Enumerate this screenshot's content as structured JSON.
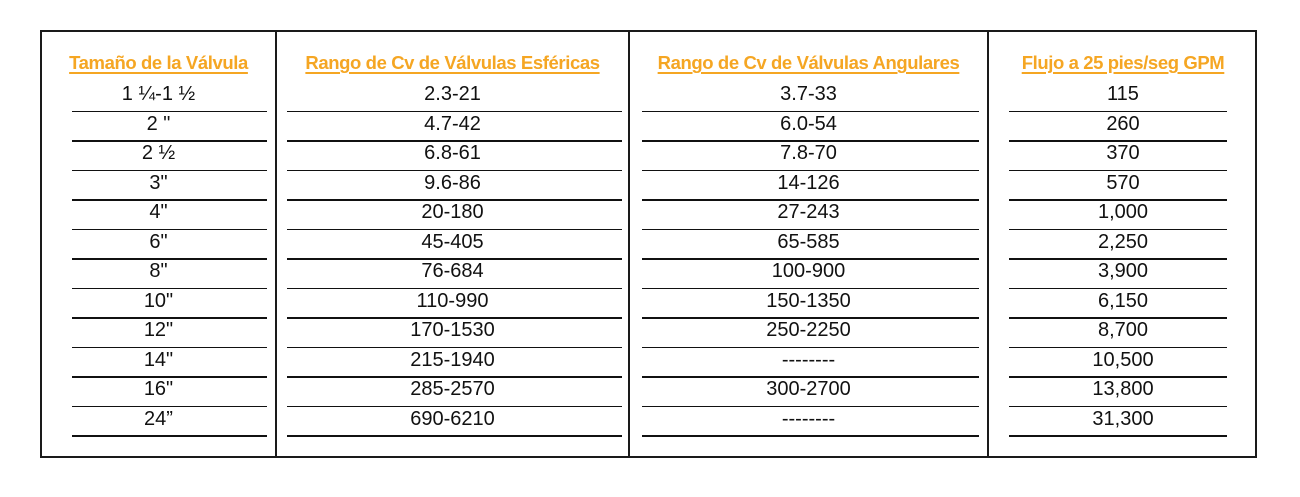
{
  "table": {
    "headers": [
      "Tamaño de la Válvula",
      "Rango de Cv de Válvulas Esféricas",
      "Rango de Cv de Válvulas Angulares",
      "Flujo a 25 pies/seg GPM"
    ],
    "rows": [
      [
        "1 ¼-1 ½",
        "2.3-21",
        "3.7-33",
        "115"
      ],
      [
        "2 \"",
        "4.7-42",
        "6.0-54",
        "260"
      ],
      [
        "2 ½",
        "6.8-61",
        "7.8-70",
        "370"
      ],
      [
        "3\"",
        "9.6-86",
        "14-126",
        "570"
      ],
      [
        "4\"",
        "20-180",
        "27-243",
        "1,000"
      ],
      [
        "6\"",
        "45-405",
        "65-585",
        "2,250"
      ],
      [
        "8\"",
        "76-684",
        "100-900",
        "3,900"
      ],
      [
        "10\"",
        "110-990",
        "150-1350",
        "6,150"
      ],
      [
        "12\"",
        "170-1530",
        "250-2250",
        "8,700"
      ],
      [
        "14\"",
        "215-1940",
        "--------",
        "10,500"
      ],
      [
        "16\"",
        "285-2570",
        "300-2700",
        "13,800"
      ],
      [
        "24”",
        "690-6210",
        "--------",
        "31,300"
      ]
    ]
  },
  "colors": {
    "header": "#f5a623",
    "text": "#111111",
    "border": "#1a1a1a"
  }
}
